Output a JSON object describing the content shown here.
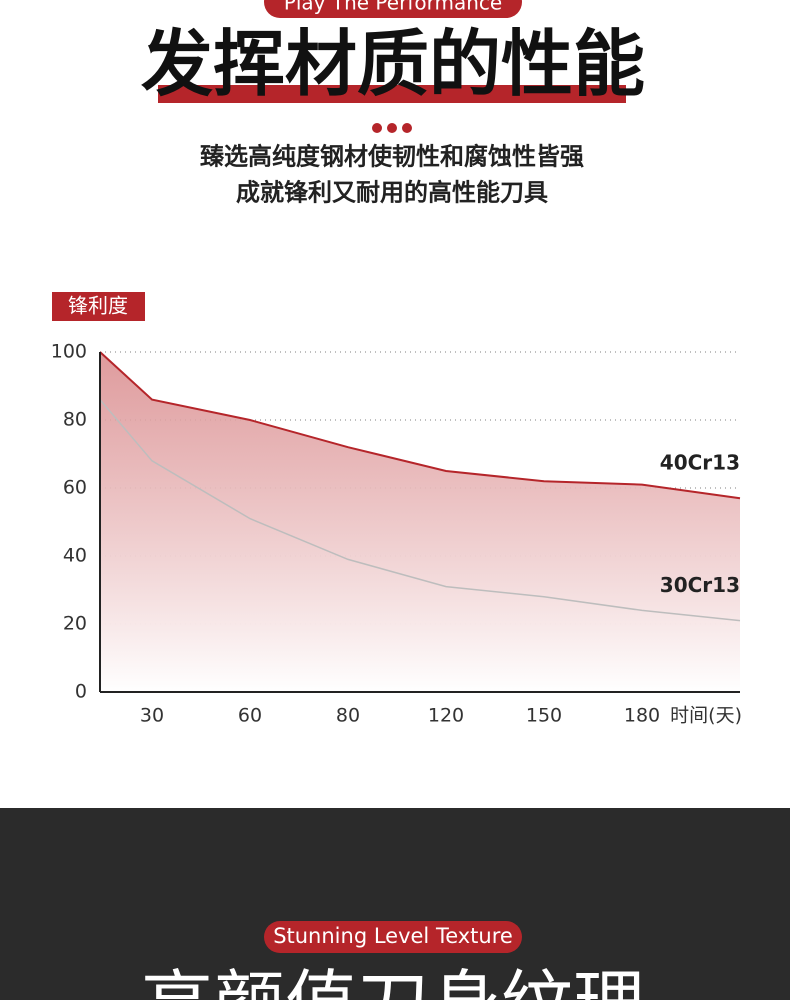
{
  "header": {
    "badge": "Play The Performance",
    "title": "发挥材质的性能",
    "subtitle_lines": [
      "臻选高纯度钢材使韧性和腐蚀性皆强",
      "成就锋利又耐用的高性能刀具"
    ]
  },
  "chart_data": {
    "type": "area-line",
    "y_label": "锋利度",
    "x_label": "时间(天)",
    "categories": [
      null,
      "30",
      "60",
      "80",
      "120",
      "150",
      "180",
      null
    ],
    "series": [
      {
        "name": "40Cr13",
        "color": "#b5252a",
        "values": [
          100,
          86,
          80,
          72,
          65,
          62,
          61,
          57
        ]
      },
      {
        "name": "30Cr13",
        "color": "#bdbdbd",
        "values": [
          86,
          68,
          51,
          39,
          31,
          28,
          24,
          21
        ]
      }
    ],
    "ylim": [
      0,
      100
    ],
    "yticks": [
      0,
      20,
      40,
      60,
      80,
      100
    ],
    "grid": true
  },
  "footer": {
    "badge": "Stunning Level Texture",
    "title": "高颜值刀身纹理"
  }
}
